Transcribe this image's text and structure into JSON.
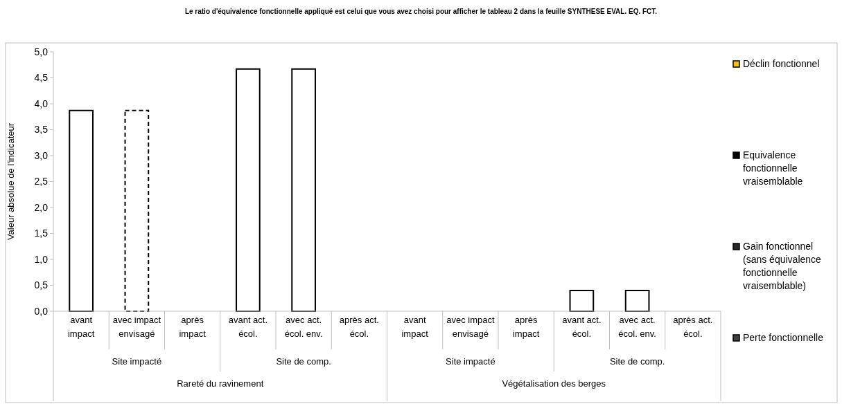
{
  "chart_data": {
    "type": "bar",
    "title": "Le ratio d'équivalence fonctionnelle appliqué est celui que vous avez choisi pour afficher le tableau 2 dans la feuille SYNTHESE EVAL. EQ. FCT.",
    "ylabel": "Valeur absolue de l'indicateur",
    "categories": [
      "avant impact",
      "avec impact envisagé",
      "après impact",
      "avant act. écol.",
      "avec act. écol. env.",
      "après act. écol.",
      "avant impact",
      "avec impact envisagé",
      "après impact",
      "avant act. écol.",
      "avec act. écol. env.",
      "après act. écol."
    ],
    "annotations": [
      "Site impacté",
      "Site de comp.",
      "Site impacté",
      "Site de comp.",
      "Rareté du ravinement",
      "Végétalisation des berges"
    ],
    "series": [
      {
        "color": "#ffffff",
        "line_style": "solid",
        "values": [
          3.87,
          null,
          null,
          4.67,
          4.67,
          null,
          null,
          null,
          null,
          0.4,
          0.4,
          null
        ]
      },
      {
        "color": "#ffffff",
        "line_style": "dashed",
        "values": [
          null,
          3.87,
          null,
          null,
          null,
          null,
          null,
          null,
          null,
          null,
          null,
          null
        ]
      },
      {
        "name": "Déclin fonctionnel",
        "color": "#ffc000",
        "values": [
          null,
          null,
          null,
          null,
          null,
          null,
          null,
          null,
          null,
          null,
          null,
          null
        ]
      },
      {
        "name": "Equivalence fonctionnelle vraisemblable",
        "color": "#000000",
        "values": [
          null,
          null,
          null,
          null,
          null,
          null,
          null,
          null,
          null,
          null,
          null,
          null
        ]
      },
      {
        "name": "Gain fonctionnel (sans équivalence fonctionnelle vraisemblable)",
        "color": "#262626",
        "values": [
          null,
          null,
          null,
          null,
          null,
          null,
          null,
          null,
          null,
          null,
          null,
          null
        ]
      },
      {
        "name": "Perte fonctionnelle",
        "color": "#404040",
        "values": [
          null,
          null,
          null,
          null,
          null,
          null,
          null,
          null,
          null,
          null,
          null,
          null
        ]
      }
    ],
    "ylim": [
      0,
      5
    ],
    "yticks": [
      {
        "value": 0,
        "label": "0,0"
      },
      {
        "value": 0.5,
        "label": "0,5"
      },
      {
        "value": 1,
        "label": "1,0"
      },
      {
        "value": 1.5,
        "label": "1,5"
      },
      {
        "value": 2,
        "label": "2,0"
      },
      {
        "value": 2.5,
        "label": "2,5"
      },
      {
        "value": 3,
        "label": "3,0"
      },
      {
        "value": 3.5,
        "label": "3,5"
      },
      {
        "value": 4,
        "label": "4,0"
      },
      {
        "value": 4.5,
        "label": "4,5"
      },
      {
        "value": 5,
        "label": "5,0"
      }
    ],
    "legend": "right"
  }
}
